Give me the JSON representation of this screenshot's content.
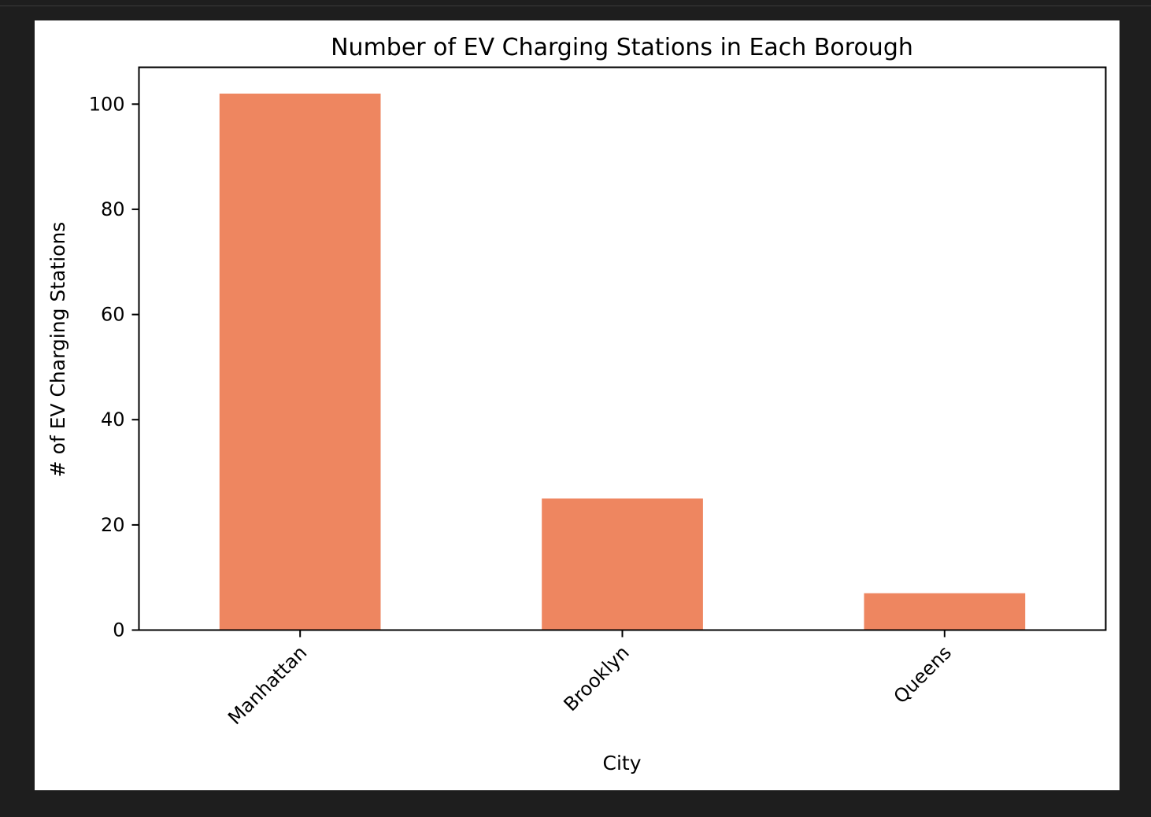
{
  "chart_data": {
    "type": "bar",
    "title": "Number of EV Charging Stations in Each Borough",
    "xlabel": "City",
    "ylabel": "# of EV Charging Stations",
    "categories": [
      "Manhattan",
      "Brooklyn",
      "Queens"
    ],
    "values": [
      102,
      25,
      7
    ],
    "ylim": [
      0,
      107
    ],
    "yticks": [
      0,
      20,
      40,
      60,
      80,
      100
    ],
    "ytick_labels": [
      "0",
      "20",
      "40",
      "60",
      "80",
      "100"
    ],
    "bar_color": "#ee8660",
    "xtick_rotation_deg": 45,
    "grid": false,
    "legend": "none"
  }
}
